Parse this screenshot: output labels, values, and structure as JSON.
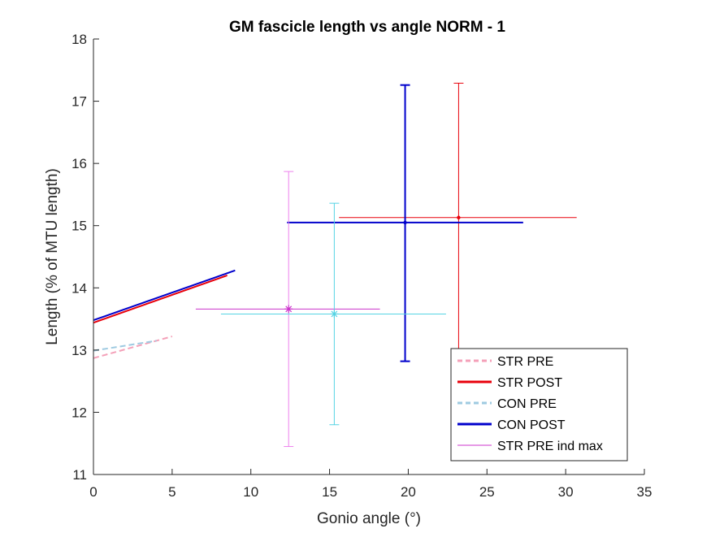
{
  "chart_data": {
    "type": "line",
    "title": "GM fascicle length vs angle NORM - 1",
    "xlabel": "Gonio angle (°)",
    "ylabel": "Length (% of MTU length)",
    "xlim": [
      0,
      35
    ],
    "ylim": [
      11,
      18
    ],
    "xticks": [
      0,
      5,
      10,
      15,
      20,
      25,
      30,
      35
    ],
    "yticks": [
      11,
      12,
      13,
      14,
      15,
      16,
      17,
      18
    ],
    "grid": false,
    "legend_position": "bottom-right",
    "series": [
      {
        "name": "STR PRE",
        "color": "#f4a0b8",
        "dash": "dashed",
        "x": [
          0,
          5
        ],
        "y": [
          12.87,
          13.22
        ]
      },
      {
        "name": "STR POST",
        "color": "#e8000b",
        "dash": "solid",
        "x": [
          0,
          8.5
        ],
        "y": [
          13.44,
          14.2
        ]
      },
      {
        "name": "CON PRE",
        "color": "#9ecae1",
        "dash": "dashed",
        "x": [
          0,
          4
        ],
        "y": [
          12.99,
          13.15
        ]
      },
      {
        "name": "CON POST",
        "color": "#0000cc",
        "dash": "solid",
        "x": [
          0,
          9
        ],
        "y": [
          13.48,
          14.28
        ]
      },
      {
        "name": "STR PRE ind max",
        "color": "#cc33cc",
        "dash": "solid",
        "x": [],
        "y": []
      }
    ],
    "error_points": [
      {
        "color": "#e8000b",
        "marker": "dot",
        "x": 23.2,
        "y": 15.13,
        "xerr": [
          15.6,
          30.7
        ],
        "yerr": [
          12.98,
          17.29
        ],
        "lw": 1
      },
      {
        "color": "#0000cc",
        "marker": "dot",
        "x": 19.8,
        "y": 15.05,
        "xerr": [
          12.3,
          27.3
        ],
        "yerr": [
          12.82,
          17.26
        ],
        "lw": 2
      },
      {
        "color": "#ee82ee",
        "marker": "none",
        "x": 12.4,
        "y": 13.66,
        "xerr": null,
        "yerr": [
          11.45,
          15.87
        ],
        "lw": 1
      },
      {
        "color": "#cc33cc",
        "marker": "star",
        "x": 12.4,
        "y": 13.66,
        "xerr": [
          6.5,
          18.2
        ],
        "yerr": null,
        "lw": 1
      },
      {
        "color": "#56d4e4",
        "marker": "star",
        "x": 15.3,
        "y": 13.58,
        "xerr": [
          8.1,
          22.4
        ],
        "yerr": [
          11.8,
          15.36
        ],
        "lw": 1
      }
    ]
  }
}
